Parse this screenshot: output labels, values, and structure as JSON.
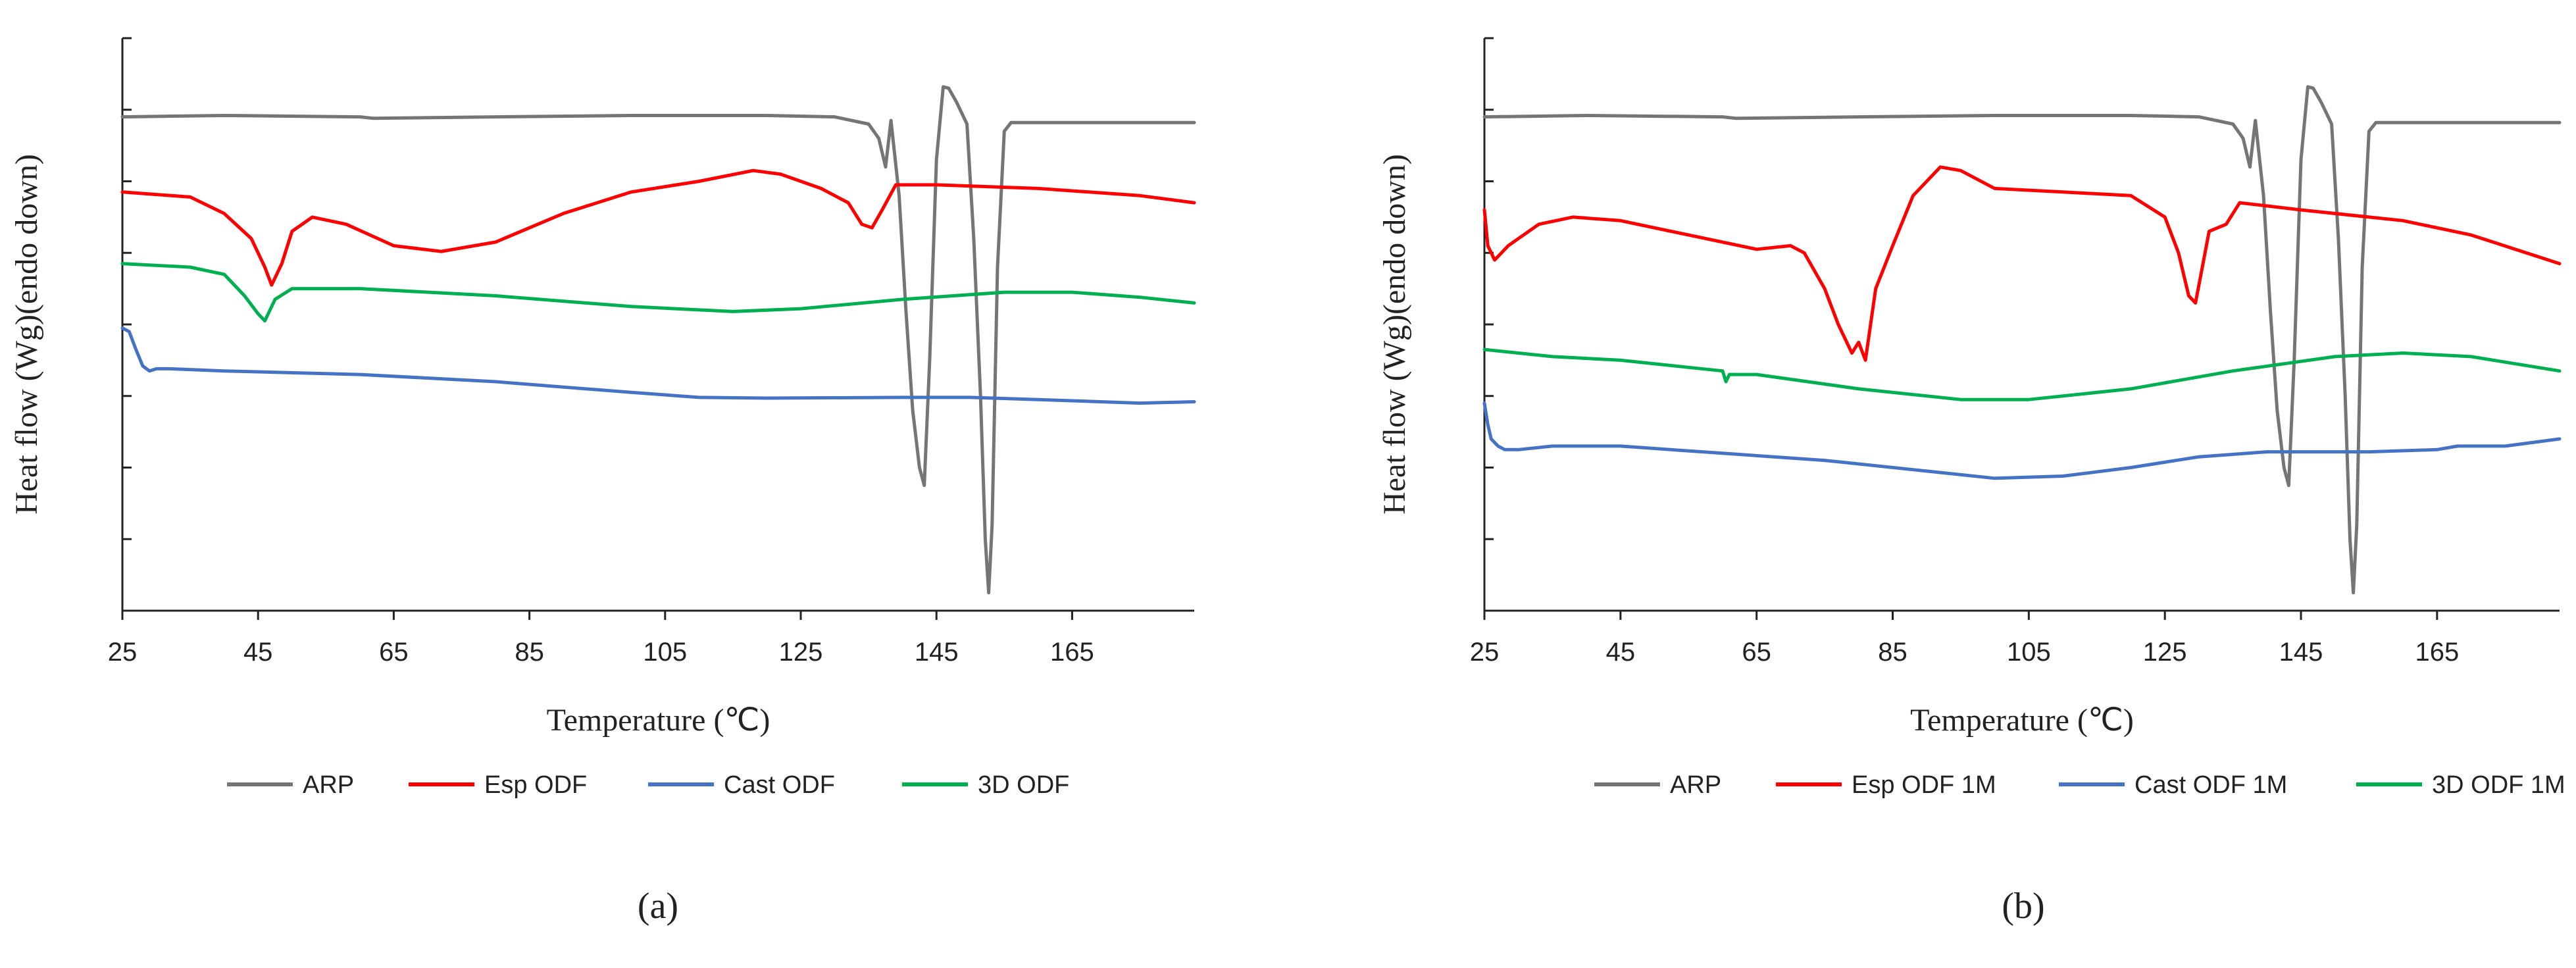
{
  "chart_data": [
    {
      "type": "line",
      "panel_label": "(a)",
      "xlabel": "Temperature (℃)",
      "ylabel": "Heat flow (Wg)(endo down)",
      "x_ticks": [
        "25",
        "45",
        "65",
        "85",
        "105",
        "125",
        "145",
        "165"
      ],
      "xlim": [
        25,
        183
      ],
      "ylim": [
        0,
        8
      ],
      "y_tick_count": 9,
      "y_tick_labels_shown": false,
      "legend_position": "bottom",
      "series": [
        {
          "name": "ARP",
          "color": "#757575",
          "x": [
            25,
            40,
            60,
            62,
            80,
            100,
            120,
            130,
            135,
            136.5,
            137.5,
            138.3,
            139.5,
            140.5,
            141.5,
            142.5,
            143.2,
            144,
            145,
            146,
            146.8,
            148,
            149.5,
            150.5,
            151.5,
            152.2,
            152.7,
            153.2,
            154,
            155,
            156,
            160,
            170,
            183
          ],
          "y": [
            6.9,
            6.92,
            6.9,
            6.88,
            6.9,
            6.92,
            6.92,
            6.9,
            6.8,
            6.6,
            6.2,
            6.85,
            5.8,
            4.2,
            2.8,
            2.0,
            1.75,
            3.5,
            6.3,
            7.32,
            7.3,
            7.1,
            6.8,
            5.2,
            3.0,
            1.0,
            0.25,
            1.2,
            4.8,
            6.7,
            6.82,
            6.82,
            6.82,
            6.82
          ]
        },
        {
          "name": "Esp ODF",
          "color": "#ff0000",
          "x": [
            25,
            35,
            40,
            44,
            46,
            47,
            48.5,
            50,
            53,
            58,
            65,
            72,
            80,
            90,
            100,
            110,
            118,
            122,
            128,
            132,
            134,
            135.5,
            137,
            139,
            145,
            160,
            175,
            183
          ],
          "y": [
            5.85,
            5.78,
            5.55,
            5.2,
            4.8,
            4.55,
            4.85,
            5.3,
            5.5,
            5.4,
            5.1,
            5.02,
            5.15,
            5.55,
            5.85,
            6.0,
            6.15,
            6.1,
            5.9,
            5.7,
            5.4,
            5.35,
            5.6,
            5.95,
            5.95,
            5.9,
            5.8,
            5.7
          ]
        },
        {
          "name": "Cast ODF",
          "color": "#4472c4",
          "x": [
            25,
            26,
            27,
            28,
            29,
            30,
            32,
            40,
            60,
            80,
            100,
            110,
            120,
            140,
            150,
            160,
            175,
            183
          ],
          "y": [
            3.95,
            3.9,
            3.65,
            3.42,
            3.35,
            3.38,
            3.38,
            3.35,
            3.3,
            3.2,
            3.05,
            2.98,
            2.97,
            2.98,
            2.98,
            2.95,
            2.9,
            2.92
          ]
        },
        {
          "name": "3D ODF",
          "color": "#00b050",
          "x": [
            25,
            35,
            40,
            43,
            45,
            46,
            47.5,
            50,
            60,
            80,
            100,
            115,
            125,
            140,
            155,
            165,
            175,
            183
          ],
          "y": [
            4.85,
            4.8,
            4.7,
            4.4,
            4.15,
            4.05,
            4.35,
            4.5,
            4.5,
            4.4,
            4.25,
            4.18,
            4.22,
            4.35,
            4.45,
            4.45,
            4.38,
            4.3
          ]
        }
      ]
    },
    {
      "type": "line",
      "panel_label": "(b)",
      "xlabel": "Temperature (℃)",
      "ylabel": "Heat flow (Wg)(endo down)",
      "x_ticks": [
        "25",
        "45",
        "65",
        "85",
        "105",
        "125",
        "145",
        "165"
      ],
      "xlim": [
        25,
        183
      ],
      "ylim": [
        0,
        8
      ],
      "y_tick_count": 9,
      "y_tick_labels_shown": false,
      "legend_position": "bottom",
      "series": [
        {
          "name": "ARP",
          "color": "#757575",
          "x": [
            25,
            40,
            60,
            62,
            80,
            100,
            120,
            130,
            135,
            136.5,
            137.5,
            138.3,
            139.5,
            140.5,
            141.5,
            142.5,
            143.2,
            144,
            145,
            146,
            146.8,
            148,
            149.5,
            150.5,
            151.5,
            152.2,
            152.7,
            153.2,
            154,
            155,
            156,
            160,
            170,
            183
          ],
          "y": [
            6.9,
            6.92,
            6.9,
            6.88,
            6.9,
            6.92,
            6.92,
            6.9,
            6.8,
            6.6,
            6.2,
            6.85,
            5.8,
            4.2,
            2.8,
            2.0,
            1.75,
            3.5,
            6.3,
            7.32,
            7.3,
            7.1,
            6.8,
            5.2,
            3.0,
            1.0,
            0.25,
            1.2,
            4.8,
            6.7,
            6.82,
            6.82,
            6.82,
            6.82
          ]
        },
        {
          "name": "Esp ODF 1M",
          "color": "#ff0000",
          "x": [
            25,
            25.5,
            26.5,
            27.5,
            28.5,
            30,
            33,
            38,
            45,
            55,
            65,
            70,
            72,
            75,
            77,
            79,
            80,
            81,
            82.5,
            85,
            88,
            92,
            95,
            100,
            110,
            120,
            125,
            127,
            128.5,
            129.5,
            130.5,
            131.5,
            134,
            136,
            145,
            160,
            170,
            183
          ],
          "y": [
            5.6,
            5.1,
            4.9,
            5.0,
            5.1,
            5.2,
            5.4,
            5.5,
            5.45,
            5.25,
            5.05,
            5.1,
            5.0,
            4.5,
            4.0,
            3.6,
            3.75,
            3.5,
            4.5,
            5.1,
            5.8,
            6.2,
            6.15,
            5.9,
            5.85,
            5.8,
            5.5,
            5.0,
            4.4,
            4.3,
            4.8,
            5.3,
            5.4,
            5.7,
            5.6,
            5.45,
            5.25,
            4.85
          ]
        },
        {
          "name": "Cast ODF 1M",
          "color": "#4472c4",
          "x": [
            25,
            25.5,
            26,
            27,
            28,
            30,
            35,
            45,
            60,
            75,
            90,
            100,
            110,
            120,
            130,
            140,
            155,
            165,
            168,
            175,
            183
          ],
          "y": [
            2.9,
            2.6,
            2.4,
            2.3,
            2.25,
            2.25,
            2.3,
            2.3,
            2.2,
            2.1,
            1.95,
            1.85,
            1.88,
            2.0,
            2.15,
            2.22,
            2.22,
            2.25,
            2.3,
            2.3,
            2.4
          ]
        },
        {
          "name": "3D ODF 1M",
          "color": "#00b050",
          "x": [
            25,
            35,
            45,
            55,
            60,
            60.5,
            61,
            65,
            80,
            95,
            105,
            120,
            135,
            150,
            160,
            170,
            183
          ],
          "y": [
            3.65,
            3.55,
            3.5,
            3.4,
            3.35,
            3.2,
            3.3,
            3.3,
            3.1,
            2.95,
            2.95,
            3.1,
            3.35,
            3.55,
            3.6,
            3.55,
            3.35
          ]
        }
      ]
    }
  ]
}
